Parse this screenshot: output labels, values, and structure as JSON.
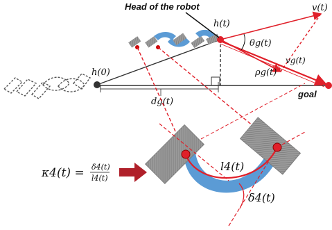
{
  "labels": {
    "head_of_robot": "Head of the robot",
    "goal": "goal",
    "h0": "h(0)",
    "ht": "h(t)",
    "vt": "v(t)",
    "theta_g": "θg(t)",
    "v_g": "vg(t)",
    "rho_g": "ρg(t)",
    "d_g": "dg(t)",
    "l4": "l4(t)",
    "delta4": "δ4(t)"
  },
  "equation": {
    "lhs": "κ4(t) =",
    "numerator": "δ4(t)",
    "denominator": "l4(t)"
  },
  "colors": {
    "red": "#e0202a",
    "blue": "#5b9bd5",
    "gray_block": "#8c8c8c",
    "dark_line": "#333333",
    "arrow": "#b0202a"
  }
}
